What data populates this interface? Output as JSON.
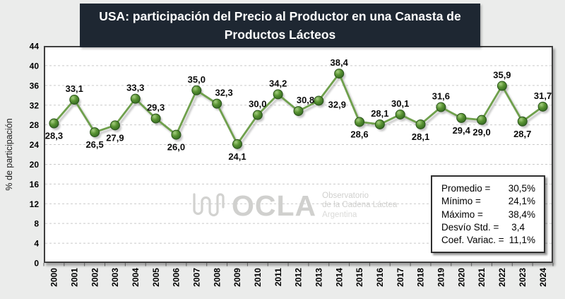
{
  "title": "USA: participación del Precio al Productor en una Canasta de Productos Lácteos",
  "y_axis_title": "% de participación",
  "watermark": {
    "logo": "OCLA",
    "line1": "Observatorio",
    "line2": "de la Cadena Láctea",
    "line3": "Argentina"
  },
  "stats": {
    "rows": [
      {
        "label": "Promedio =",
        "value": "30,5%"
      },
      {
        "label": "Mínimo =",
        "value": "24,1%"
      },
      {
        "label": "Máximo =",
        "value": "38,4%"
      },
      {
        "label": "Desvío Std. =",
        "value": "3,4"
      },
      {
        "label": "Coef. Variac. =",
        "value": "11,1%"
      }
    ]
  },
  "colors": {
    "background": "#ebeceb",
    "title_bg": "#1e2732",
    "title_fg": "#ffffff",
    "plot_bg": "#ffffff",
    "grid": "#c9c9c9",
    "line": "#6fa04c",
    "marker": "#4e8f35",
    "watermark": "#d0d0ce"
  },
  "chart_data": {
    "type": "line",
    "title": "USA: participación del Precio al Productor en una Canasta de Productos Lácteos",
    "xlabel": "",
    "ylabel": "% de participación",
    "ylim": [
      0,
      44
    ],
    "ytick_step": 4,
    "grid": "horizontal-dashed",
    "legend": "none",
    "line_color": "#6fa04c",
    "marker_color": "#4e8f35",
    "x": [
      "2000",
      "2001",
      "2002",
      "2003",
      "2004",
      "2005",
      "2006",
      "2007",
      "2008",
      "2009",
      "2010",
      "2011",
      "2012",
      "2013",
      "2014",
      "2015",
      "2016",
      "2017",
      "2018",
      "2019",
      "2020",
      "2021",
      "2022",
      "2023",
      "2024"
    ],
    "values": [
      28.3,
      33.1,
      26.5,
      27.9,
      33.3,
      29.3,
      26.0,
      35.0,
      32.3,
      24.1,
      30.0,
      34.2,
      30.8,
      32.9,
      38.4,
      28.6,
      28.1,
      30.1,
      28.1,
      31.6,
      29.4,
      29.0,
      35.9,
      28.7,
      31.7
    ],
    "point_labels": [
      "28,3",
      "33,1",
      "26,5",
      "27,9",
      "33,3",
      "29,3",
      "26,0",
      "35,0",
      "32,3",
      "24,1",
      "30,0",
      "34,2",
      "30,8",
      "32,9",
      "38,4",
      "28,6",
      "28,1",
      "30,1",
      "28,1",
      "31,6",
      "29,4",
      "29,0",
      "35,9",
      "28,7",
      "31,7"
    ],
    "label_positions": [
      "below",
      "above",
      "below",
      "below",
      "above",
      "above",
      "below",
      "above",
      "above-right",
      "below",
      "above",
      "above",
      "above-right",
      "right",
      "above",
      "below",
      "above",
      "above",
      "below",
      "above",
      "below",
      "below",
      "above",
      "below",
      "above"
    ]
  }
}
